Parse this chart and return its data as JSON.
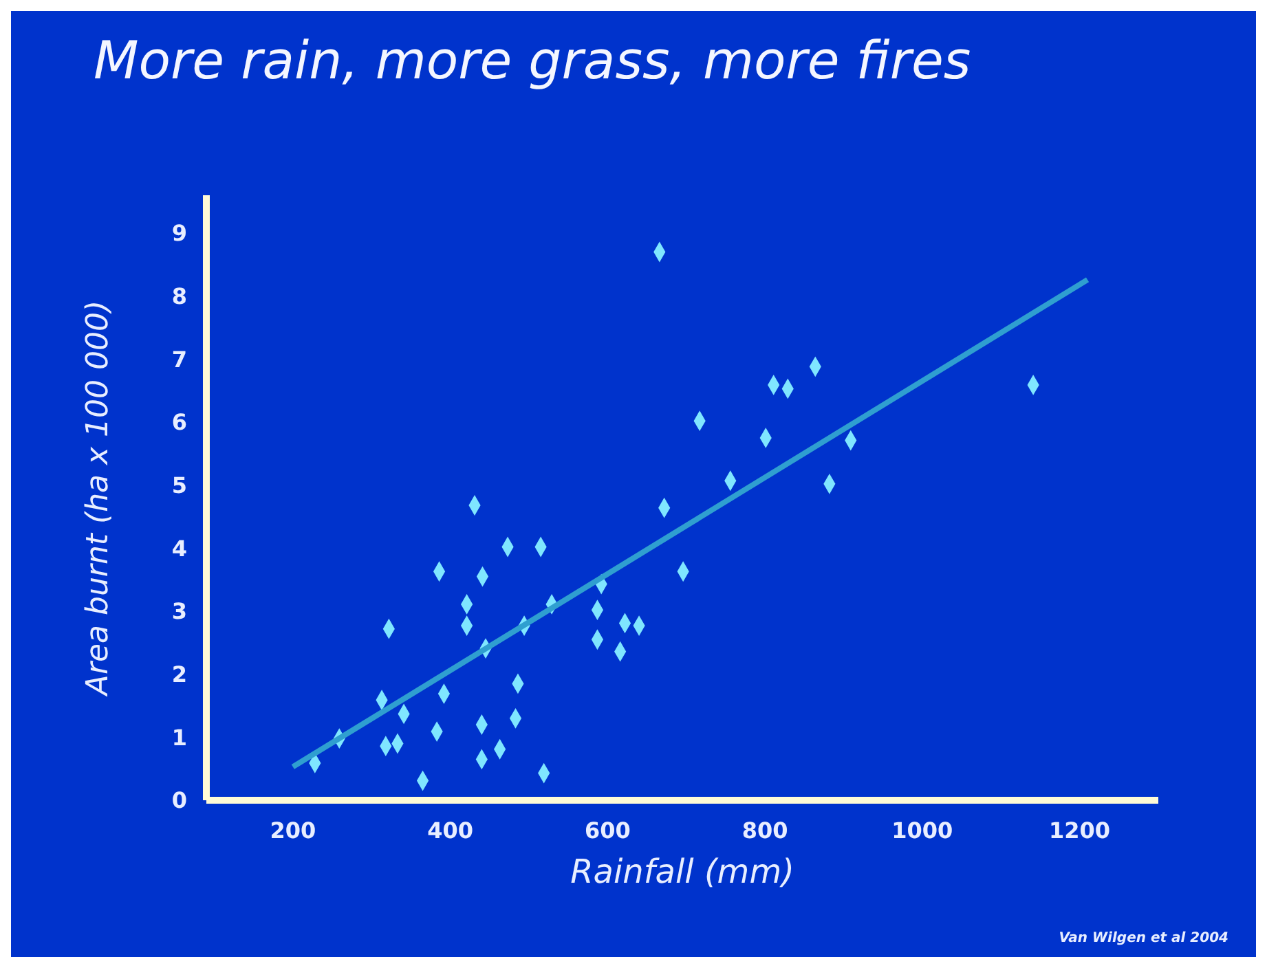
{
  "chart_data": {
    "type": "scatter",
    "title": "More rain, more grass, more fires",
    "xlabel": "Rainfall (mm)",
    "ylabel": "Area burnt (ha  x 100 000)",
    "annotations": [
      "Van Wilgen  et al 2004"
    ],
    "xlim": [
      90,
      1300
    ],
    "xticks": [
      200,
      400,
      600,
      800,
      1000,
      1200
    ],
    "ylim": [
      0,
      9.6
    ],
    "yticks": [
      0,
      1,
      2,
      3,
      4,
      5,
      6,
      7,
      8,
      9
    ],
    "marker": "diamond",
    "series": [
      {
        "color": "#7fe6ff",
        "x": [
          666,
          431,
          672,
          473,
          515,
          386,
          441,
          696,
          592,
          421,
          529,
          587,
          322,
          421,
          494,
          622,
          640,
          445,
          587,
          616,
          486,
          313,
          392,
          341,
          483,
          383,
          440,
          259,
          318,
          333,
          463,
          228,
          440,
          519,
          365,
          864,
          811,
          829,
          1141,
          717,
          801,
          909,
          756,
          882
        ],
        "values": [
          8.7,
          4.68,
          4.64,
          4.02,
          4.02,
          3.63,
          3.55,
          3.63,
          3.43,
          3.11,
          3.11,
          3.02,
          2.72,
          2.77,
          2.77,
          2.81,
          2.77,
          2.41,
          2.55,
          2.36,
          1.85,
          1.59,
          1.69,
          1.37,
          1.3,
          1.09,
          1.2,
          0.98,
          0.86,
          0.9,
          0.81,
          0.59,
          0.65,
          0.43,
          0.31,
          6.88,
          6.59,
          6.53,
          6.59,
          6.02,
          5.75,
          5.71,
          5.07,
          5.02
        ]
      },
      {
        "type": "line",
        "marker": "none",
        "color": "#2f9fd0",
        "x": [
          200,
          1210
        ],
        "values": [
          0.53,
          8.26
        ]
      }
    ]
  }
}
